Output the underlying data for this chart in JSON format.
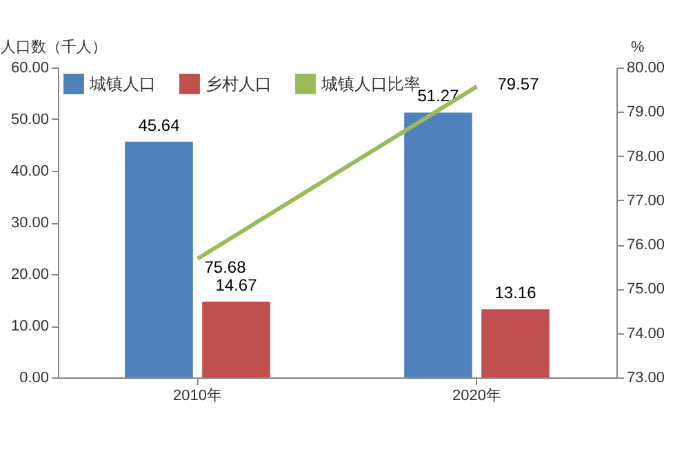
{
  "chart_data": {
    "type": "bar",
    "ylabel": "人口数（千人）",
    "y2label": "%",
    "categories": [
      "2010年",
      "2020年"
    ],
    "series": [
      {
        "name": "城镇人口",
        "color": "#4f81bd",
        "values": [
          45.64,
          51.27
        ]
      },
      {
        "name": "乡村人口",
        "color": "#c0504d",
        "values": [
          14.67,
          13.16
        ]
      },
      {
        "name": "城镇人口比率",
        "type": "line",
        "axis": "y2",
        "color": "#9bbb59",
        "values": [
          75.68,
          79.57
        ]
      }
    ],
    "ylim": [
      0,
      60
    ],
    "yticks": [
      {
        "value": 0,
        "label": "0.00"
      },
      {
        "value": 10,
        "label": "10.00"
      },
      {
        "value": 20,
        "label": "20.00"
      },
      {
        "value": 30,
        "label": "30.00"
      },
      {
        "value": 40,
        "label": "40.00"
      },
      {
        "value": 50,
        "label": "50.00"
      },
      {
        "value": 60,
        "label": "60.00"
      }
    ],
    "y2lim": [
      73,
      80
    ],
    "y2ticks": [
      {
        "value": 73,
        "label": "73.00"
      },
      {
        "value": 74,
        "label": "74.00"
      },
      {
        "value": 75,
        "label": "75.00"
      },
      {
        "value": 76,
        "label": "76.00"
      },
      {
        "value": 77,
        "label": "77.00"
      },
      {
        "value": 78,
        "label": "78.00"
      },
      {
        "value": 79,
        "label": "79.00"
      },
      {
        "value": 80,
        "label": "80.00"
      }
    ],
    "data_labels": true,
    "legend": "top left"
  }
}
